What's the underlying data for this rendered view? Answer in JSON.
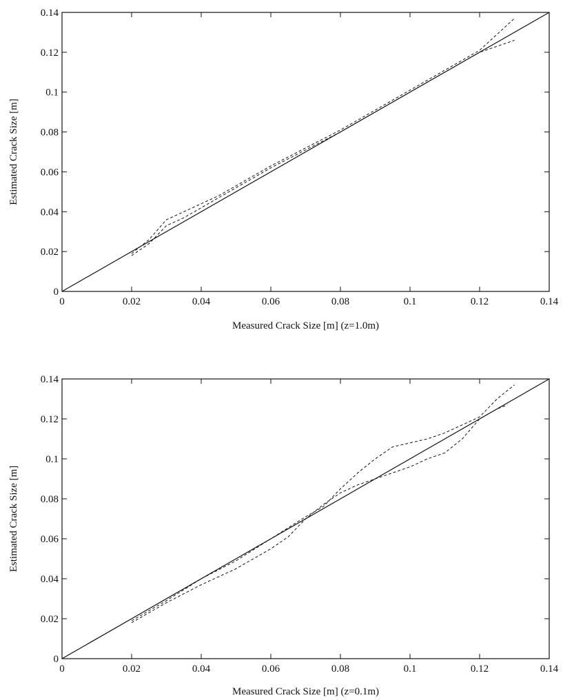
{
  "chart_data": [
    {
      "type": "line",
      "title": "",
      "xlabel": "Measured Crack Size [m] (z=1.0m)",
      "ylabel": "Estimated Crack Size [m]",
      "xlim": [
        0,
        0.14
      ],
      "ylim": [
        0,
        0.14
      ],
      "xticks": [
        "0",
        "0.02",
        "0.04",
        "0.06",
        "0.08",
        "0.1",
        "0.12",
        "0.14"
      ],
      "yticks": [
        "0",
        "0.02",
        "0.04",
        "0.06",
        "0.08",
        "0.1",
        "0.12",
        "0.14"
      ],
      "grid": false,
      "series": [
        {
          "style": "solid",
          "x": [
            0,
            0.14
          ],
          "y": [
            0,
            0.14
          ]
        },
        {
          "style": "dashed",
          "x": [
            0.02,
            0.025,
            0.03,
            0.035,
            0.04,
            0.045,
            0.05,
            0.06,
            0.07,
            0.08,
            0.09,
            0.1,
            0.11,
            0.12,
            0.13
          ],
          "y": [
            0.019,
            0.026,
            0.036,
            0.04,
            0.044,
            0.048,
            0.053,
            0.063,
            0.072,
            0.081,
            0.091,
            0.101,
            0.111,
            0.121,
            0.137
          ]
        },
        {
          "style": "dashed",
          "x": [
            0.02,
            0.025,
            0.03,
            0.035,
            0.04,
            0.045,
            0.05,
            0.06,
            0.07,
            0.08,
            0.09,
            0.1,
            0.11,
            0.12,
            0.13
          ],
          "y": [
            0.018,
            0.024,
            0.033,
            0.037,
            0.042,
            0.047,
            0.052,
            0.062,
            0.071,
            0.08,
            0.09,
            0.1,
            0.11,
            0.12,
            0.126
          ]
        }
      ]
    },
    {
      "type": "line",
      "title": "",
      "xlabel": "Measured Crack Size [m] (z=0.1m)",
      "ylabel": "Estimated Crack Size [m]",
      "xlim": [
        0,
        0.14
      ],
      "ylim": [
        0,
        0.14
      ],
      "xticks": [
        "0",
        "0.02",
        "0.04",
        "0.06",
        "0.08",
        "0.1",
        "0.12",
        "0.14"
      ],
      "yticks": [
        "0",
        "0.02",
        "0.04",
        "0.06",
        "0.08",
        "0.1",
        "0.12",
        "0.14"
      ],
      "grid": false,
      "series": [
        {
          "style": "solid",
          "x": [
            0,
            0.14
          ],
          "y": [
            0,
            0.14
          ]
        },
        {
          "style": "dashed",
          "x": [
            0.02,
            0.03,
            0.04,
            0.05,
            0.06,
            0.07,
            0.075,
            0.08,
            0.085,
            0.09,
            0.095,
            0.1,
            0.105,
            0.11,
            0.115,
            0.12,
            0.125,
            0.13
          ],
          "y": [
            0.019,
            0.029,
            0.04,
            0.049,
            0.06,
            0.071,
            0.076,
            0.085,
            0.093,
            0.1,
            0.106,
            0.108,
            0.11,
            0.113,
            0.117,
            0.121,
            0.13,
            0.137
          ]
        },
        {
          "style": "dashed",
          "x": [
            0.02,
            0.03,
            0.04,
            0.05,
            0.06,
            0.065,
            0.07,
            0.075,
            0.08,
            0.085,
            0.09,
            0.095,
            0.1,
            0.105,
            0.11,
            0.115,
            0.12,
            0.125,
            0.128
          ],
          "y": [
            0.018,
            0.028,
            0.037,
            0.045,
            0.055,
            0.061,
            0.07,
            0.077,
            0.083,
            0.087,
            0.09,
            0.093,
            0.096,
            0.1,
            0.103,
            0.11,
            0.12,
            0.125,
            0.127
          ]
        }
      ]
    }
  ]
}
